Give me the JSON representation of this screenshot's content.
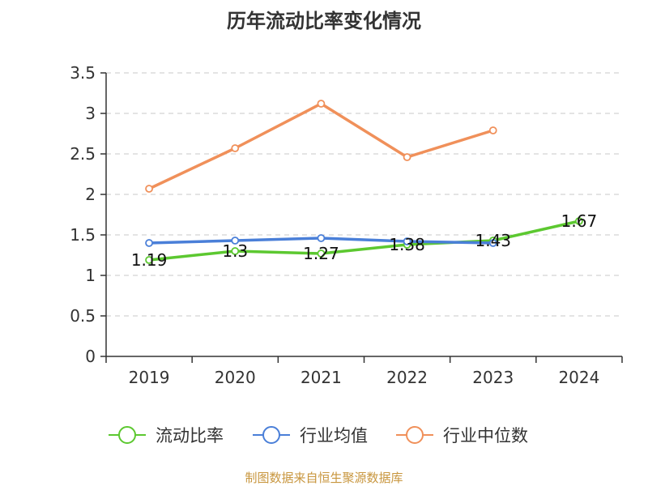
{
  "chart_data": {
    "type": "line",
    "title": "历年流动比率变化情况",
    "categories": [
      "2019",
      "2020",
      "2021",
      "2022",
      "2023",
      "2024"
    ],
    "ylim": [
      0,
      3.5
    ],
    "yticks": [
      "0",
      "0.5",
      "1",
      "1.5",
      "2",
      "2.5",
      "3",
      "3.5"
    ],
    "grid": true,
    "legend_position": "bottom",
    "series": [
      {
        "name": "流动比率",
        "color": "#5cc830",
        "values": [
          1.19,
          1.3,
          1.27,
          1.38,
          1.43,
          1.67
        ],
        "labels": [
          "1.19",
          "1.3",
          "1.27",
          "1.38",
          "1.43",
          "1.67"
        ]
      },
      {
        "name": "行业均值",
        "color": "#4a7fd8",
        "values": [
          1.4,
          1.43,
          1.46,
          1.42,
          1.4,
          null
        ]
      },
      {
        "name": "行业中位数",
        "color": "#f0905a",
        "values": [
          2.07,
          2.57,
          3.12,
          2.46,
          2.79,
          null
        ]
      }
    ]
  },
  "footer": {
    "source": "制图数据来自恒生聚源数据库"
  }
}
